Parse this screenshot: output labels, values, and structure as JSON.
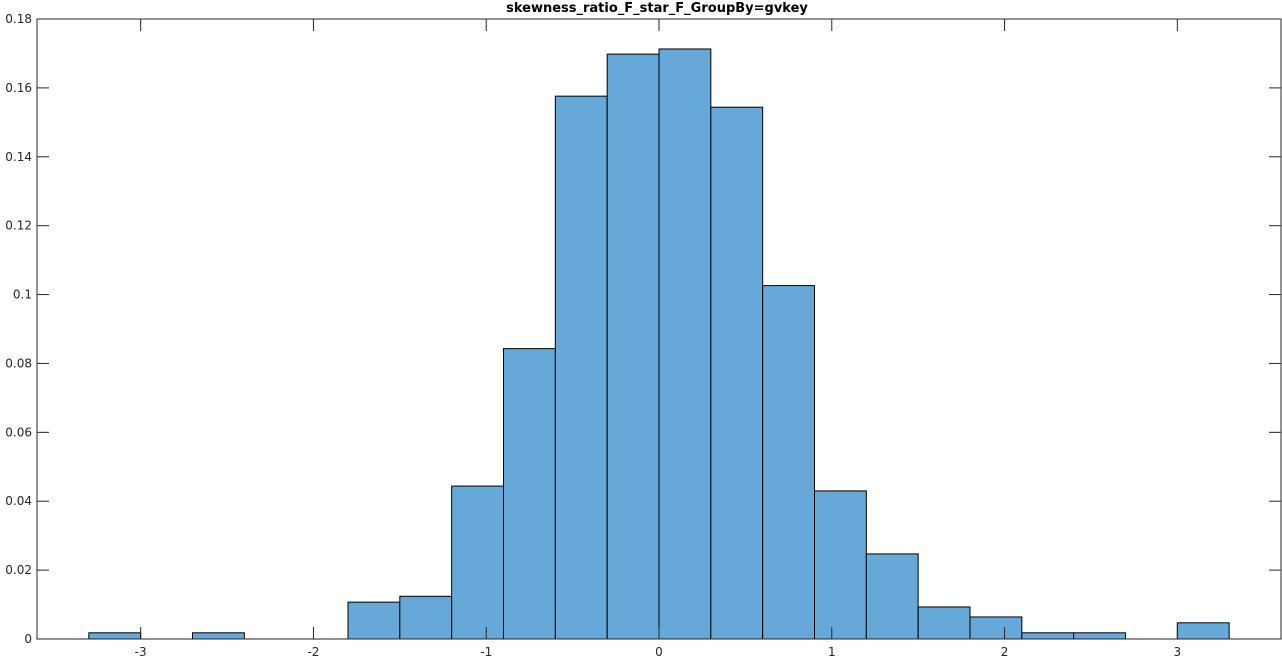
{
  "chart_data": {
    "type": "bar",
    "title": "skewness_ratio_F_star_F_GroupBy=gvkey",
    "xlabel": "",
    "ylabel": "",
    "xlim": [
      -3.6,
      3.6
    ],
    "ylim": [
      0,
      0.18
    ],
    "xticks": [
      -3,
      -2,
      -1,
      0,
      1,
      2,
      3
    ],
    "xtick_labels": [
      "-3",
      "-2",
      "-1",
      "0",
      "1",
      "2",
      "3"
    ],
    "yticks": [
      0,
      0.02,
      0.04,
      0.06,
      0.08,
      0.1,
      0.12,
      0.14,
      0.16,
      0.18
    ],
    "ytick_labels": [
      "0",
      "0.02",
      "0.04",
      "0.06",
      "0.08",
      "0.1",
      "0.12",
      "0.14",
      "0.16",
      "0.18"
    ],
    "grid": false,
    "colors": {
      "bar_fill": "#66a9d8",
      "bar_edge": "#000000",
      "axis": "#262626"
    },
    "bins": [
      {
        "left": -3.3,
        "right": -3.0,
        "value": 0.0018
      },
      {
        "left": -3.0,
        "right": -2.7,
        "value": 0.0
      },
      {
        "left": -2.7,
        "right": -2.4,
        "value": 0.0018
      },
      {
        "left": -2.4,
        "right": -2.1,
        "value": 0.0
      },
      {
        "left": -2.1,
        "right": -1.8,
        "value": 0.0
      },
      {
        "left": -1.8,
        "right": -1.5,
        "value": 0.0107
      },
      {
        "left": -1.5,
        "right": -1.2,
        "value": 0.0124
      },
      {
        "left": -1.2,
        "right": -0.9,
        "value": 0.0444
      },
      {
        "left": -0.9,
        "right": -0.6,
        "value": 0.0843
      },
      {
        "left": -0.6,
        "right": -0.3,
        "value": 0.1576
      },
      {
        "left": -0.3,
        "right": 0.0,
        "value": 0.1698
      },
      {
        "left": 0.0,
        "right": 0.3,
        "value": 0.1713
      },
      {
        "left": 0.3,
        "right": 0.6,
        "value": 0.1544
      },
      {
        "left": 0.6,
        "right": 0.9,
        "value": 0.1026
      },
      {
        "left": 0.9,
        "right": 1.2,
        "value": 0.043
      },
      {
        "left": 1.2,
        "right": 1.5,
        "value": 0.0247
      },
      {
        "left": 1.5,
        "right": 1.8,
        "value": 0.0093
      },
      {
        "left": 1.8,
        "right": 2.1,
        "value": 0.0064
      },
      {
        "left": 2.1,
        "right": 2.4,
        "value": 0.0018
      },
      {
        "left": 2.4,
        "right": 2.7,
        "value": 0.0018
      },
      {
        "left": 2.7,
        "right": 3.0,
        "value": 0.0
      },
      {
        "left": 3.0,
        "right": 3.3,
        "value": 0.0047
      }
    ]
  }
}
